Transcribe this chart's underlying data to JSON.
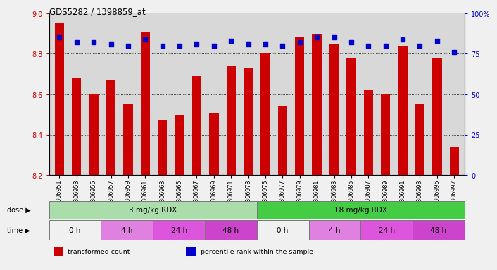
{
  "title": "GDS5282 / 1398859_at",
  "samples": [
    "GSM306951",
    "GSM306953",
    "GSM306955",
    "GSM306957",
    "GSM306959",
    "GSM306961",
    "GSM306963",
    "GSM306965",
    "GSM306967",
    "GSM306969",
    "GSM306971",
    "GSM306973",
    "GSM306975",
    "GSM306977",
    "GSM306979",
    "GSM306981",
    "GSM306983",
    "GSM306985",
    "GSM306987",
    "GSM306989",
    "GSM306991",
    "GSM306993",
    "GSM306995",
    "GSM306997"
  ],
  "transformed_counts": [
    8.95,
    8.68,
    8.6,
    8.67,
    8.55,
    8.91,
    8.47,
    8.5,
    8.69,
    8.51,
    8.74,
    8.73,
    8.8,
    8.54,
    8.88,
    8.9,
    8.85,
    8.78,
    8.62,
    8.6,
    8.84,
    8.55,
    8.78,
    8.34
  ],
  "percentile_ranks": [
    85,
    82,
    82,
    81,
    80,
    84,
    80,
    80,
    81,
    80,
    83,
    81,
    81,
    80,
    82,
    85,
    85,
    82,
    80,
    80,
    84,
    80,
    83,
    76
  ],
  "ylim_left": [
    8.2,
    9.0
  ],
  "ylim_right": [
    0,
    100
  ],
  "y_ticks_left": [
    8.2,
    8.4,
    8.6,
    8.8,
    9.0
  ],
  "y_ticks_right": [
    0,
    25,
    50,
    75,
    100
  ],
  "y_tick_labels_right": [
    "0",
    "25",
    "50",
    "75",
    "100%"
  ],
  "bar_color": "#cc0000",
  "dot_color": "#0000cc",
  "bg_color": "#d8d8d8",
  "dose_groups": [
    {
      "label": "3 mg/kg RDX",
      "start": 0,
      "end": 12,
      "color": "#aaddaa"
    },
    {
      "label": "18 mg/kg RDX",
      "start": 12,
      "end": 24,
      "color": "#44cc44"
    }
  ],
  "time_groups": [
    {
      "label": "0 h",
      "start": 0,
      "end": 3,
      "color": "#f0f0f0"
    },
    {
      "label": "4 h",
      "start": 3,
      "end": 6,
      "color": "#e080e0"
    },
    {
      "label": "24 h",
      "start": 6,
      "end": 9,
      "color": "#dd55dd"
    },
    {
      "label": "48 h",
      "start": 9,
      "end": 12,
      "color": "#cc44cc"
    },
    {
      "label": "0 h",
      "start": 12,
      "end": 15,
      "color": "#f0f0f0"
    },
    {
      "label": "4 h",
      "start": 15,
      "end": 18,
      "color": "#e080e0"
    },
    {
      "label": "24 h",
      "start": 18,
      "end": 21,
      "color": "#dd55dd"
    },
    {
      "label": "48 h",
      "start": 21,
      "end": 24,
      "color": "#cc44cc"
    }
  ],
  "dose_label": "dose",
  "time_label": "time",
  "legend_items": [
    {
      "color": "#cc0000",
      "label": "transformed count"
    },
    {
      "color": "#0000cc",
      "label": "percentile rank within the sample"
    }
  ],
  "fig_bg": "#f0f0f0"
}
